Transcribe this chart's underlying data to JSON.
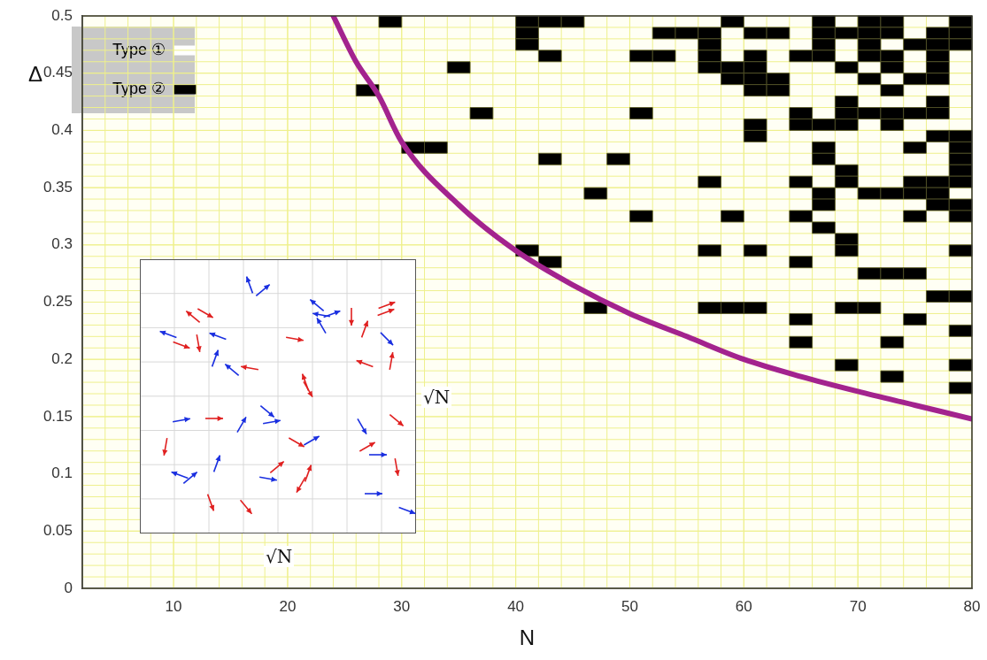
{
  "chart_data": {
    "type": "scatter",
    "xlabel": "N",
    "ylabel": "Δ",
    "xlim": [
      2,
      80
    ],
    "ylim": [
      0,
      0.5
    ],
    "xticks": [
      10,
      20,
      30,
      40,
      50,
      60,
      70,
      80
    ],
    "yticks": [
      0,
      0.05,
      0.1,
      0.15,
      0.2,
      0.25,
      0.3,
      0.35,
      0.4,
      0.45,
      0.5
    ],
    "grid": true,
    "legend": "top left",
    "marker": "square",
    "annotations": [
      "√N",
      "√N"
    ],
    "series": [
      {
        "name": "Type ①",
        "color": "#ffffff"
      },
      {
        "name": "Type ②",
        "color": "#000000",
        "x": [
          29,
          41,
          43,
          45,
          59,
          67,
          71,
          73,
          79,
          41,
          53,
          55,
          57,
          61,
          63,
          67,
          69,
          71,
          73,
          77,
          79,
          41,
          57,
          67,
          71,
          75,
          77,
          79,
          43,
          51,
          53,
          57,
          61,
          65,
          67,
          71,
          73,
          77,
          35,
          57,
          59,
          61,
          69,
          73,
          77,
          59,
          61,
          63,
          71,
          75,
          77,
          27,
          61,
          63,
          73,
          69,
          77,
          37,
          51,
          65,
          69,
          71,
          73,
          75,
          77,
          61,
          65,
          67,
          69,
          73,
          61,
          77,
          79,
          31,
          33,
          67,
          75,
          79,
          43,
          49,
          67,
          79,
          69,
          79,
          57,
          65,
          69,
          75,
          77,
          79,
          47,
          67,
          71,
          73,
          75,
          77,
          67,
          77,
          79,
          51,
          59,
          65,
          75,
          79,
          67,
          69,
          41,
          57,
          61,
          69,
          79,
          43,
          65,
          71,
          73,
          75,
          77,
          79,
          47,
          57,
          59,
          61,
          69,
          71,
          65,
          75,
          79,
          65,
          73,
          69,
          79,
          73,
          79
        ],
        "values": [
          0.495,
          0.495,
          0.495,
          0.495,
          0.495,
          0.495,
          0.495,
          0.495,
          0.495,
          0.485,
          0.485,
          0.485,
          0.485,
          0.485,
          0.485,
          0.485,
          0.485,
          0.485,
          0.485,
          0.485,
          0.485,
          0.475,
          0.475,
          0.475,
          0.475,
          0.475,
          0.475,
          0.475,
          0.465,
          0.465,
          0.465,
          0.465,
          0.465,
          0.465,
          0.465,
          0.465,
          0.465,
          0.465,
          0.455,
          0.455,
          0.455,
          0.455,
          0.455,
          0.455,
          0.455,
          0.445,
          0.445,
          0.445,
          0.445,
          0.445,
          0.445,
          0.435,
          0.435,
          0.435,
          0.435,
          0.425,
          0.425,
          0.415,
          0.415,
          0.415,
          0.415,
          0.415,
          0.415,
          0.415,
          0.415,
          0.405,
          0.405,
          0.405,
          0.405,
          0.405,
          0.395,
          0.395,
          0.395,
          0.385,
          0.385,
          0.385,
          0.385,
          0.385,
          0.375,
          0.375,
          0.375,
          0.375,
          0.365,
          0.365,
          0.355,
          0.355,
          0.355,
          0.355,
          0.355,
          0.355,
          0.345,
          0.345,
          0.345,
          0.345,
          0.345,
          0.345,
          0.335,
          0.335,
          0.335,
          0.325,
          0.325,
          0.325,
          0.325,
          0.325,
          0.315,
          0.305,
          0.295,
          0.295,
          0.295,
          0.295,
          0.295,
          0.285,
          0.285,
          0.275,
          0.275,
          0.275,
          0.255,
          0.255,
          0.245,
          0.245,
          0.245,
          0.245,
          0.245,
          0.245,
          0.235,
          0.235,
          0.225,
          0.215,
          0.215,
          0.195,
          0.195,
          0.185,
          0.175
        ]
      },
      {
        "type": "line",
        "color": "#a3238e",
        "marker": "none",
        "x": [
          24,
          26,
          28,
          30,
          35,
          40,
          45,
          50,
          55,
          60,
          65,
          70,
          75,
          80
        ],
        "values": [
          0.5,
          0.46,
          0.43,
          0.39,
          0.335,
          0.295,
          0.265,
          0.24,
          0.22,
          0.2,
          0.185,
          0.172,
          0.16,
          0.148
        ]
      }
    ]
  }
}
